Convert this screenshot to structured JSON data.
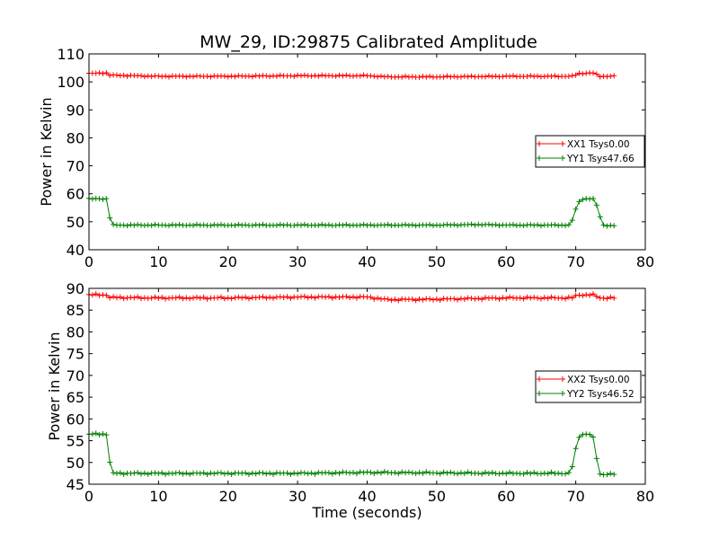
{
  "title": "MW_29, ID:29875 Calibrated Amplitude",
  "chart_data": [
    {
      "type": "line",
      "xlabel": "",
      "ylabel": "Power in Kelvin",
      "xlim": [
        0,
        80
      ],
      "ylim": [
        40,
        110
      ],
      "xticks": [
        0,
        10,
        20,
        30,
        40,
        50,
        60,
        70,
        80
      ],
      "yticks": [
        40,
        50,
        60,
        70,
        80,
        90,
        100,
        110
      ],
      "legend_position": "center-right",
      "grid": false,
      "series": [
        {
          "name": "XX1 Tsys0.00",
          "color": "#ff0000",
          "marker": "+",
          "key_points": [
            [
              0,
              103
            ],
            [
              2.5,
              103.2
            ],
            [
              3,
              102.4
            ],
            [
              10,
              102
            ],
            [
              20,
              102
            ],
            [
              30,
              102.2
            ],
            [
              40,
              102.2
            ],
            [
              43,
              101.8
            ],
            [
              50,
              101.8
            ],
            [
              60,
              102
            ],
            [
              69.5,
              102
            ],
            [
              70.5,
              103
            ],
            [
              72.5,
              103.2
            ],
            [
              73.5,
              102
            ],
            [
              75.5,
              102
            ]
          ]
        },
        {
          "name": "YY1 Tsys47.66",
          "color": "#008000",
          "marker": "+",
          "key_points": [
            [
              0,
              58.2
            ],
            [
              2.5,
              58.2
            ],
            [
              3,
              51.5
            ],
            [
              3.5,
              48.8
            ],
            [
              10,
              48.8
            ],
            [
              20,
              48.8
            ],
            [
              30,
              48.8
            ],
            [
              40,
              48.8
            ],
            [
              50,
              48.8
            ],
            [
              56,
              49
            ],
            [
              60,
              48.8
            ],
            [
              69.3,
              48.8
            ],
            [
              70,
              54.5
            ],
            [
              70.7,
              58.2
            ],
            [
              72.6,
              58.2
            ],
            [
              73.3,
              54
            ],
            [
              73.8,
              48.8
            ],
            [
              75.5,
              48.5
            ]
          ]
        }
      ]
    },
    {
      "type": "line",
      "xlabel": "Time (seconds)",
      "ylabel": "Power in Kelvin",
      "xlim": [
        0,
        80
      ],
      "ylim": [
        45,
        90
      ],
      "xticks": [
        0,
        10,
        20,
        30,
        40,
        50,
        60,
        70,
        80
      ],
      "yticks": [
        45,
        50,
        55,
        60,
        65,
        70,
        75,
        80,
        85,
        90
      ],
      "legend_position": "center-right",
      "grid": false,
      "series": [
        {
          "name": "XX2 Tsys0.00",
          "color": "#ff0000",
          "marker": "+",
          "key_points": [
            [
              0,
              88.5
            ],
            [
              2.5,
              88.5
            ],
            [
              3,
              87.9
            ],
            [
              10,
              87.8
            ],
            [
              20,
              87.8
            ],
            [
              30,
              88
            ],
            [
              40,
              88
            ],
            [
              43,
              87.4
            ],
            [
              50,
              87.5
            ],
            [
              60,
              87.8
            ],
            [
              69.5,
              87.8
            ],
            [
              70.3,
              88.5
            ],
            [
              72.5,
              88.5
            ],
            [
              73.5,
              87.8
            ],
            [
              75.5,
              87.8
            ]
          ]
        },
        {
          "name": "YY2 Tsys46.52",
          "color": "#008000",
          "marker": "+",
          "key_points": [
            [
              0,
              56.5
            ],
            [
              2.5,
              56.5
            ],
            [
              3,
              50
            ],
            [
              3.5,
              47.5
            ],
            [
              10,
              47.5
            ],
            [
              20,
              47.5
            ],
            [
              30,
              47.5
            ],
            [
              40,
              47.7
            ],
            [
              50,
              47.6
            ],
            [
              60,
              47.5
            ],
            [
              69.3,
              47.5
            ],
            [
              70,
              53
            ],
            [
              70.6,
              56.5
            ],
            [
              72.4,
              56.5
            ],
            [
              73,
              51
            ],
            [
              73.5,
              47.3
            ],
            [
              75.5,
              47.3
            ]
          ]
        }
      ]
    }
  ]
}
